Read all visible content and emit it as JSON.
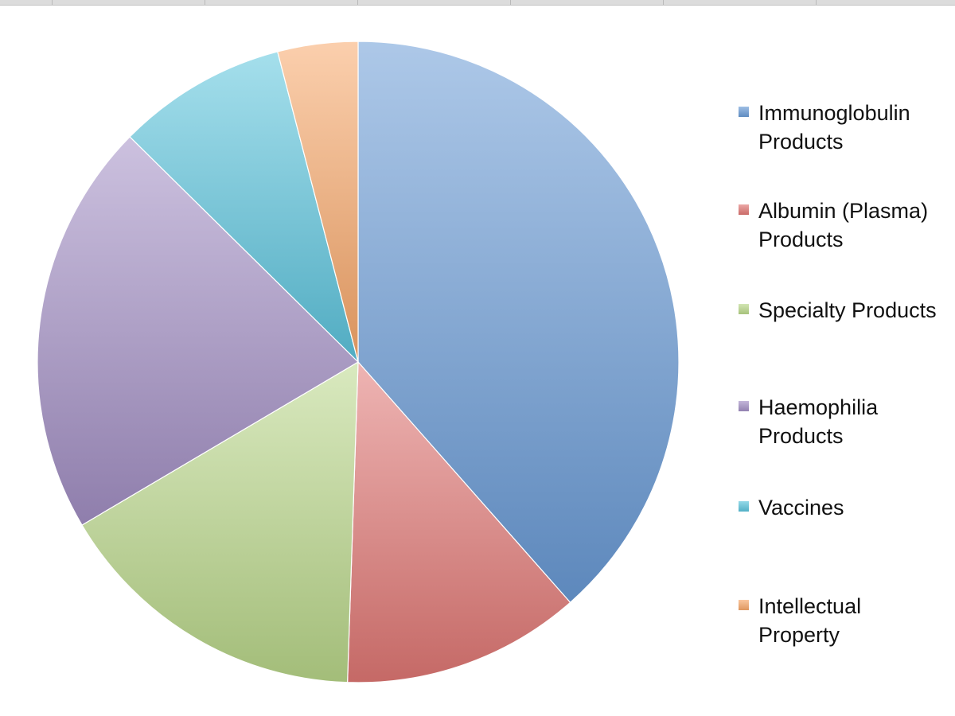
{
  "chart_data": {
    "type": "pie",
    "title": "",
    "legend_position": "right",
    "series": [
      {
        "name": "Immunoglobulin\nProducts",
        "value": 40.0,
        "color": "#6a9bd6"
      },
      {
        "name": "Albumin (Plasma)\nProducts",
        "value": 12.5,
        "color": "#e07774"
      },
      {
        "name": "Specialty Products",
        "value": 16.6,
        "color": "#b9d78a"
      },
      {
        "name": "Haemophilia\nProducts",
        "value": 21.7,
        "color": "#a28fc4"
      },
      {
        "name": "Vaccines",
        "value": 8.9,
        "color": "#5cc4dc"
      },
      {
        "name": "Intellectual\nProperty",
        "value": 4.2,
        "color": "#f7a76a"
      }
    ]
  }
}
